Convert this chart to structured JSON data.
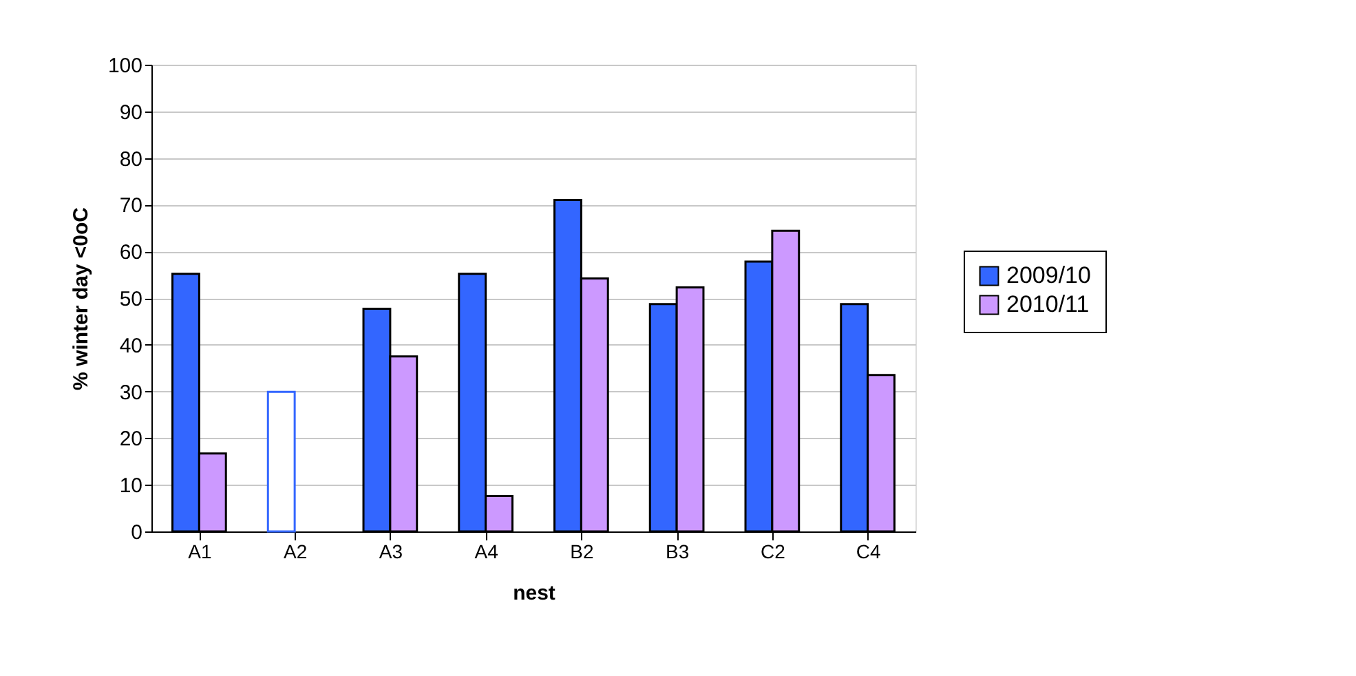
{
  "chart_data": {
    "type": "bar",
    "xlabel": "nest",
    "ylabel": "% winter day <0oC",
    "categories": [
      "A1",
      "A2",
      "A3",
      "A4",
      "B2",
      "B3",
      "C2",
      "C4"
    ],
    "series": [
      {
        "name": "2009/10",
        "color": "#3366ff",
        "colors": [
          "#3366ff",
          "#ffffff",
          "#3366ff",
          "#3366ff",
          "#3366ff",
          "#3366ff",
          "#3366ff",
          "#3366ff"
        ],
        "values": [
          55.2,
          29.9,
          47.7,
          55.2,
          71,
          48.7,
          57.8,
          48.7
        ]
      },
      {
        "name": "2010/11",
        "color": "#cc99ff",
        "values": [
          16.7,
          null,
          37.5,
          7.6,
          54.2,
          52.3,
          64.4,
          33.5
        ]
      }
    ],
    "ylim": [
      0,
      100
    ],
    "yticks": [
      0,
      10,
      20,
      30,
      40,
      50,
      60,
      70,
      80,
      90,
      100
    ],
    "grid": "y",
    "legend": "right"
  }
}
